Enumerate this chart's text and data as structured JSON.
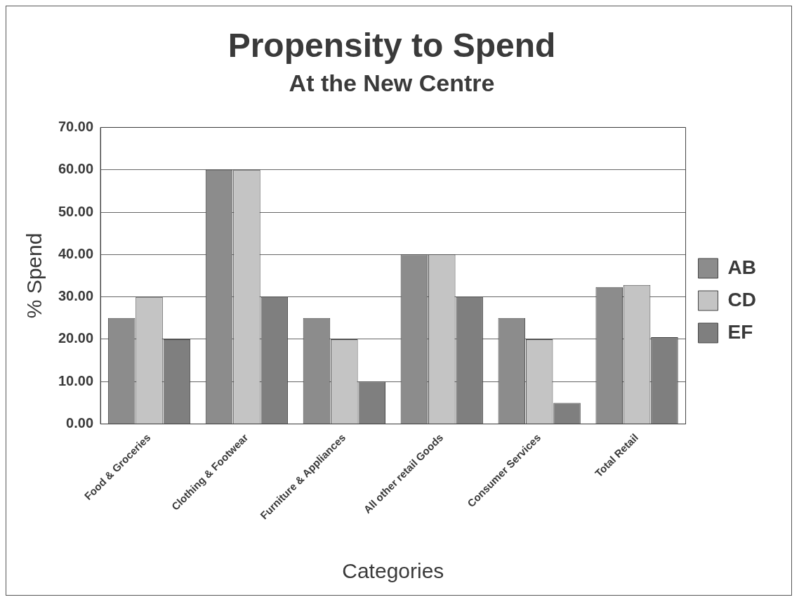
{
  "chart_data": {
    "type": "bar",
    "title": "Propensity to Spend",
    "subtitle": "At the New Centre",
    "xlabel": "Categories",
    "ylabel": "% Spend",
    "categories": [
      "Food & Groceries",
      "Clothing & Footwear",
      "Furniture & Appliances",
      "All other retail Goods",
      "Consumer Services",
      "Total Retail"
    ],
    "series": [
      {
        "name": "AB",
        "color": "#8c8c8c",
        "values": [
          25,
          60,
          25,
          40,
          25,
          32.3
        ]
      },
      {
        "name": "CD",
        "color": "#c4c4c4",
        "values": [
          30,
          60,
          20,
          40,
          20,
          32.8
        ]
      },
      {
        "name": "EF",
        "color": "#7f7f7f",
        "values": [
          20,
          30,
          10,
          30,
          5,
          20.5
        ]
      }
    ],
    "ylim": [
      0,
      70
    ],
    "yticks": [
      {
        "value": 0,
        "label": "0.00"
      },
      {
        "value": 10,
        "label": "10.00"
      },
      {
        "value": 20,
        "label": "20.00"
      },
      {
        "value": 30,
        "label": "30.00"
      },
      {
        "value": 40,
        "label": "40.00"
      },
      {
        "value": 50,
        "label": "50.00"
      },
      {
        "value": 60,
        "label": "60.00"
      },
      {
        "value": 70,
        "label": "70.00"
      }
    ],
    "grid": "y",
    "legend": "right"
  }
}
